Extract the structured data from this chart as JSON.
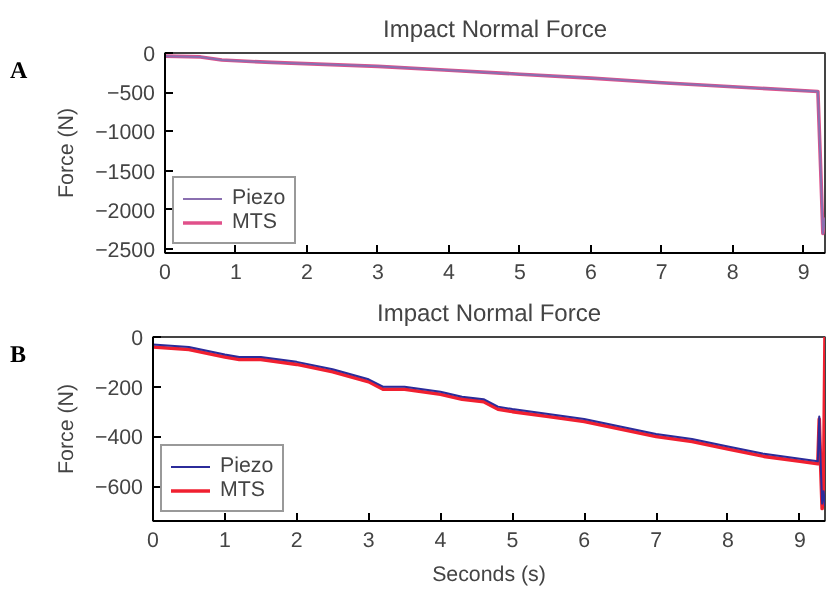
{
  "chart_data": [
    {
      "type": "line",
      "title": "Impact Normal Force",
      "ylabel": "Force (N)",
      "annotations": [
        "A"
      ],
      "xlim": [
        0,
        9.3
      ],
      "ylim": [
        -2550,
        0
      ],
      "xticks": [
        0,
        1,
        2,
        3,
        4,
        5,
        6,
        7,
        8,
        9
      ],
      "yticks": [
        0,
        -500,
        -1000,
        -1500,
        -2000,
        -2500
      ],
      "grid": false,
      "legend": "bottom left",
      "tick_labels": true,
      "x": [
        0,
        0.5,
        0.8,
        1.5,
        3,
        4,
        5,
        6,
        7,
        8,
        9.2,
        9.24,
        9.27,
        9.3
      ],
      "series": [
        {
          "name": "Piezo",
          "color": "#8a6fb0",
          "values": [
            -40,
            -50,
            -90,
            -120,
            -170,
            -220,
            -270,
            -320,
            -380,
            -430,
            -490,
            -1500,
            -2300,
            -2100
          ]
        },
        {
          "name": "MTS",
          "color": "#e0508a",
          "values": [
            -40,
            -50,
            -90,
            -120,
            -170,
            -220,
            -270,
            -320,
            -380,
            -430,
            -490,
            -1500,
            -2300,
            -2100
          ]
        }
      ]
    },
    {
      "type": "line",
      "title": "Impact Normal Force",
      "xlabel": "Seconds (s)",
      "ylabel": "Force (N)",
      "annotations": [
        "B"
      ],
      "xlim": [
        0,
        9.35
      ],
      "ylim": [
        -740,
        0
      ],
      "xticks": [
        0,
        1,
        2,
        3,
        4,
        5,
        6,
        7,
        8,
        9
      ],
      "yticks": [
        0,
        -200,
        -400,
        -600
      ],
      "grid": false,
      "legend": "bottom left",
      "x": [
        0,
        0.5,
        1,
        1.2,
        1.5,
        2,
        2.5,
        3,
        3.2,
        3.5,
        4,
        4.3,
        4.6,
        4.8,
        5,
        5.5,
        6,
        6.5,
        7,
        7.5,
        8,
        8.5,
        9,
        9.25,
        9.27,
        9.29,
        9.31,
        9.33,
        9.35
      ],
      "series": [
        {
          "name": "Piezo",
          "color": "#2b2b9a",
          "values": [
            -30,
            -40,
            -70,
            -80,
            -80,
            -100,
            -130,
            -170,
            -200,
            -200,
            -220,
            -240,
            -250,
            -280,
            -290,
            -310,
            -330,
            -360,
            -390,
            -410,
            -440,
            -470,
            -490,
            -500,
            -320,
            -510,
            -670,
            -620,
            -680
          ]
        },
        {
          "name": "MTS",
          "color": "#f02030",
          "values": [
            -40,
            -50,
            -80,
            -90,
            -90,
            -110,
            -140,
            -180,
            -210,
            -210,
            -230,
            -250,
            -260,
            -290,
            -300,
            -320,
            -340,
            -370,
            -400,
            -420,
            -450,
            -480,
            -500,
            -510,
            -330,
            -520,
            -690,
            -600,
            0
          ]
        }
      ]
    }
  ]
}
